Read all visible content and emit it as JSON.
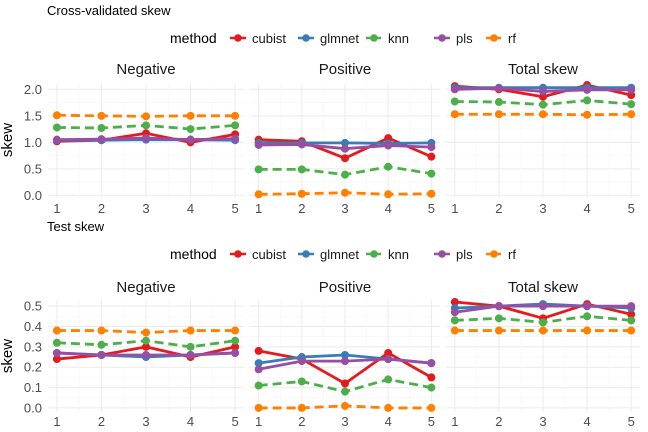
{
  "methods": [
    {
      "name": "cubist",
      "color": "#E41A1C",
      "dash": "solid"
    },
    {
      "name": "glmnet",
      "color": "#377EB8",
      "dash": "solid"
    },
    {
      "name": "knn",
      "color": "#4DAF4A",
      "dash": "dashed"
    },
    {
      "name": "pls",
      "color": "#984EA3",
      "dash": "solid"
    },
    {
      "name": "rf",
      "color": "#FF7F00",
      "dash": "dashed"
    }
  ],
  "chart_data": [
    {
      "type": "line",
      "title": "Cross-validated skew",
      "legend_title": "method",
      "legend_position": "top",
      "ylabel": "skew",
      "xlabel": "",
      "x": [
        1,
        2,
        3,
        4,
        5
      ],
      "ylim": [
        -0.05,
        2.1
      ],
      "yticks": [
        0.0,
        0.5,
        1.0,
        1.5,
        2.0
      ],
      "ytick_labels": [
        "0.0",
        "0.5",
        "1.0",
        "1.5",
        "2.0"
      ],
      "grid": true,
      "panels": [
        {
          "name": "Negative",
          "series": [
            {
              "name": "cubist",
              "values": [
                1.02,
                1.04,
                1.17,
                1.0,
                1.15
              ]
            },
            {
              "name": "glmnet",
              "values": [
                1.04,
                1.04,
                1.05,
                1.05,
                1.04
              ]
            },
            {
              "name": "knn",
              "values": [
                1.28,
                1.27,
                1.32,
                1.25,
                1.32
              ]
            },
            {
              "name": "pls",
              "values": [
                1.05,
                1.06,
                1.08,
                1.05,
                1.07
              ]
            },
            {
              "name": "rf",
              "values": [
                1.51,
                1.5,
                1.49,
                1.5,
                1.5
              ]
            }
          ]
        },
        {
          "name": "Positive",
          "series": [
            {
              "name": "cubist",
              "values": [
                1.05,
                1.02,
                0.7,
                1.08,
                0.73
              ]
            },
            {
              "name": "glmnet",
              "values": [
                0.99,
                0.99,
                0.99,
                0.98,
                0.99
              ]
            },
            {
              "name": "knn",
              "values": [
                0.49,
                0.49,
                0.39,
                0.54,
                0.41
              ]
            },
            {
              "name": "pls",
              "values": [
                0.95,
                0.96,
                0.88,
                0.94,
                0.91
              ]
            },
            {
              "name": "rf",
              "values": [
                0.02,
                0.03,
                0.05,
                0.02,
                0.03
              ]
            }
          ]
        },
        {
          "name": "Total skew",
          "series": [
            {
              "name": "cubist",
              "values": [
                2.06,
                2.0,
                1.86,
                2.08,
                1.89
              ]
            },
            {
              "name": "glmnet",
              "values": [
                2.03,
                2.03,
                2.03,
                2.03,
                2.03
              ]
            },
            {
              "name": "knn",
              "values": [
                1.77,
                1.76,
                1.71,
                1.79,
                1.72
              ]
            },
            {
              "name": "pls",
              "values": [
                2.0,
                2.02,
                1.96,
                1.99,
                1.99
              ]
            },
            {
              "name": "rf",
              "values": [
                1.53,
                1.53,
                1.53,
                1.52,
                1.53
              ]
            }
          ]
        }
      ]
    },
    {
      "type": "line",
      "title": "Test skew",
      "legend_title": "method",
      "legend_position": "top",
      "ylabel": "skew",
      "xlabel": "",
      "x": [
        1,
        2,
        3,
        4,
        5
      ],
      "ylim": [
        -0.02,
        0.53
      ],
      "yticks": [
        0.0,
        0.1,
        0.2,
        0.3,
        0.4,
        0.5
      ],
      "ytick_labels": [
        "0.0",
        "0.1",
        "0.2",
        "0.3",
        "0.4",
        "0.5"
      ],
      "grid": true,
      "panels": [
        {
          "name": "Negative",
          "series": [
            {
              "name": "cubist",
              "values": [
                0.24,
                0.26,
                0.3,
                0.25,
                0.3
              ]
            },
            {
              "name": "glmnet",
              "values": [
                0.27,
                0.26,
                0.25,
                0.26,
                0.27
              ]
            },
            {
              "name": "knn",
              "values": [
                0.32,
                0.31,
                0.33,
                0.3,
                0.33
              ]
            },
            {
              "name": "pls",
              "values": [
                0.27,
                0.26,
                0.26,
                0.26,
                0.27
              ]
            },
            {
              "name": "rf",
              "values": [
                0.38,
                0.38,
                0.37,
                0.38,
                0.38
              ]
            }
          ]
        },
        {
          "name": "Positive",
          "series": [
            {
              "name": "cubist",
              "values": [
                0.28,
                0.24,
                0.12,
                0.27,
                0.15
              ]
            },
            {
              "name": "glmnet",
              "values": [
                0.22,
                0.25,
                0.26,
                0.24,
                0.22
              ]
            },
            {
              "name": "knn",
              "values": [
                0.11,
                0.13,
                0.08,
                0.14,
                0.1
              ]
            },
            {
              "name": "pls",
              "values": [
                0.19,
                0.23,
                0.23,
                0.24,
                0.22
              ]
            },
            {
              "name": "rf",
              "values": [
                0.0,
                0.0,
                0.01,
                0.0,
                0.0
              ]
            }
          ]
        },
        {
          "name": "Total skew",
          "series": [
            {
              "name": "cubist",
              "values": [
                0.52,
                0.5,
                0.44,
                0.51,
                0.46
              ]
            },
            {
              "name": "glmnet",
              "values": [
                0.49,
                0.5,
                0.51,
                0.5,
                0.49
              ]
            },
            {
              "name": "knn",
              "values": [
                0.43,
                0.44,
                0.42,
                0.45,
                0.43
              ]
            },
            {
              "name": "pls",
              "values": [
                0.47,
                0.5,
                0.5,
                0.5,
                0.5
              ]
            },
            {
              "name": "rf",
              "values": [
                0.38,
                0.38,
                0.38,
                0.38,
                0.38
              ]
            }
          ]
        }
      ]
    }
  ]
}
